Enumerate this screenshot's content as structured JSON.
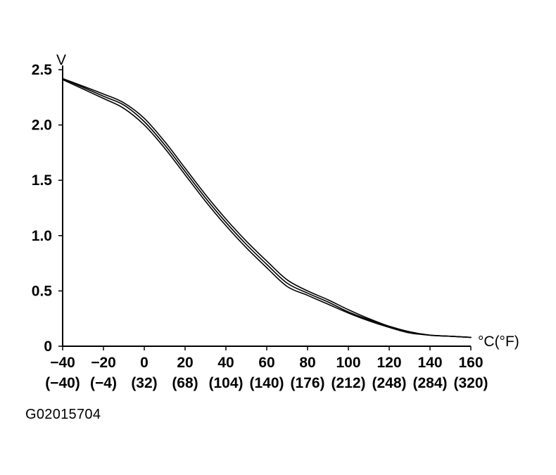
{
  "chart_data": {
    "type": "line",
    "ylabel": "V",
    "xlabel": "°C(°F)",
    "xlim": [
      -40,
      160
    ],
    "ylim": [
      0,
      2.5
    ],
    "x_ticks": [
      -40,
      -20,
      0,
      20,
      40,
      60,
      80,
      100,
      120,
      140,
      160
    ],
    "x_tick_labels": [
      "−40",
      "−20",
      "0",
      "20",
      "40",
      "60",
      "80",
      "100",
      "120",
      "140",
      "160"
    ],
    "x_tick_labels_f": [
      "(−40)",
      "(−4)",
      "(32)",
      "(68)",
      "(104)",
      "(140)",
      "(176)",
      "(212)",
      "(248)",
      "(284)",
      "(320)"
    ],
    "y_ticks": [
      0,
      0.5,
      1.0,
      1.5,
      2.0,
      2.5
    ],
    "y_tick_labels": [
      "0",
      "0.5",
      "1.0",
      "1.5",
      "2.0",
      "2.5"
    ],
    "grid": false,
    "series": [
      {
        "x": [
          -40,
          -20,
          -10,
          0,
          10,
          20,
          30,
          40,
          50,
          60,
          70,
          80,
          90,
          100,
          110,
          120,
          130,
          140,
          150,
          160
        ],
        "values": [
          2.42,
          2.28,
          2.2,
          2.06,
          1.85,
          1.61,
          1.37,
          1.15,
          0.95,
          0.77,
          0.6,
          0.5,
          0.42,
          0.33,
          0.25,
          0.18,
          0.13,
          0.1,
          0.09,
          0.08
        ]
      },
      {
        "x": [
          -40,
          -20,
          -10,
          0,
          10,
          20,
          30,
          40,
          50,
          60,
          70,
          80,
          90,
          100,
          110,
          120,
          130,
          140,
          150,
          160
        ],
        "values": [
          2.42,
          2.26,
          2.18,
          2.03,
          1.82,
          1.58,
          1.34,
          1.12,
          0.92,
          0.74,
          0.57,
          0.48,
          0.4,
          0.31,
          0.24,
          0.18,
          0.13,
          0.1,
          0.09,
          0.08
        ]
      },
      {
        "x": [
          -40,
          -20,
          -10,
          0,
          10,
          20,
          30,
          40,
          50,
          60,
          70,
          80,
          90,
          100,
          110,
          120,
          130,
          140,
          150,
          160
        ],
        "values": [
          2.41,
          2.24,
          2.15,
          2.0,
          1.79,
          1.55,
          1.31,
          1.09,
          0.89,
          0.71,
          0.54,
          0.46,
          0.38,
          0.3,
          0.23,
          0.17,
          0.12,
          0.1,
          0.09,
          0.08
        ]
      }
    ]
  },
  "figure_id": "G02015704"
}
